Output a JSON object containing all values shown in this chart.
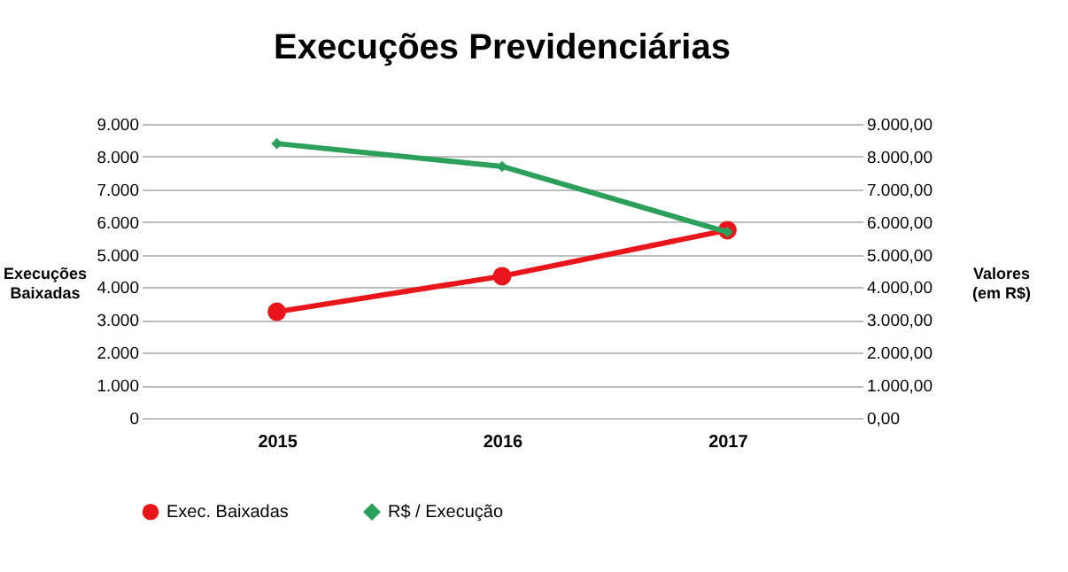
{
  "chart_data": {
    "type": "line",
    "title": "Execuções Previdenciárias",
    "ylabel": "Execuções\nBaixadas",
    "y2label": "Valores\n(em R$)",
    "categories": [
      "2015",
      "2016",
      "2017"
    ],
    "series": [
      {
        "name": "Exec. Baixadas",
        "color": "#e8161b",
        "marker": "circle",
        "values": [
          3250,
          4340,
          5750
        ]
      },
      {
        "name": "R$ / Execução",
        "color": "#2ca05a",
        "marker": "diamond",
        "axis": "y2",
        "values": [
          8400,
          7700,
          5690
        ]
      }
    ],
    "ylim": [
      0,
      9000
    ],
    "yticks": [
      {
        "value": 0,
        "label": "0"
      },
      {
        "value": 1000,
        "label": "1.000"
      },
      {
        "value": 2000,
        "label": "2.000"
      },
      {
        "value": 3000,
        "label": "3.000"
      },
      {
        "value": 4000,
        "label": "4.000"
      },
      {
        "value": 5000,
        "label": "5.000"
      },
      {
        "value": 6000,
        "label": "6.000"
      },
      {
        "value": 7000,
        "label": "7.000"
      },
      {
        "value": 8000,
        "label": "8.000"
      },
      {
        "value": 9000,
        "label": "9.000"
      }
    ],
    "y2lim": [
      0,
      9000
    ],
    "y2ticks": [
      {
        "value": 0,
        "label": "0,00"
      },
      {
        "value": 1000,
        "label": "1.000,00"
      },
      {
        "value": 2000,
        "label": "2.000,00"
      },
      {
        "value": 3000,
        "label": "3.000,00"
      },
      {
        "value": 4000,
        "label": "4.000,00"
      },
      {
        "value": 5000,
        "label": "5.000,00"
      },
      {
        "value": 6000,
        "label": "6.000,00"
      },
      {
        "value": 7000,
        "label": "7.000,00"
      },
      {
        "value": 8000,
        "label": "8.000,00"
      },
      {
        "value": 9000,
        "label": "9.000,00"
      }
    ],
    "grid": "y",
    "legend": "bottom",
    "line_style": "solid"
  }
}
